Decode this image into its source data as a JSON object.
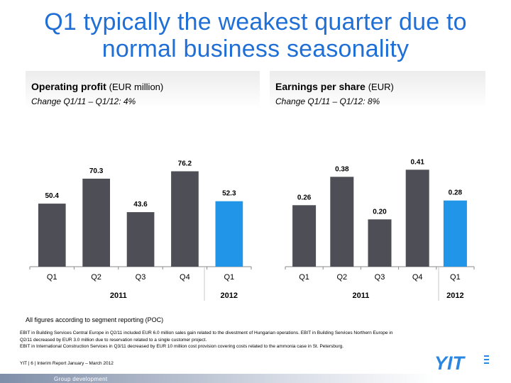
{
  "slide": {
    "title_line1": "Q1 typically the weakest quarter due to",
    "title_line2": "normal business seasonality",
    "panels": [
      {
        "metric": "Operating profit",
        "unit": "(EUR million)",
        "change": "Change Q1/11 – Q1/12: 4%"
      },
      {
        "metric": "Earnings per share",
        "unit": "(EUR)",
        "change": "Change Q1/11 – Q1/12: 8%"
      }
    ],
    "notes": {
      "poc": "All figures according to segment reporting (POC)",
      "detail_line1": "EBIT in Building Services Central Europe in Q2/11 included EUR 6.0 million sales gain related to the divestment of Hungarian operations. EBIT in Building Services Northern Europe in",
      "detail_line2": "Q2/11 decreased by EUR 3.0 million due to reservation related to a single customer project.",
      "detail_line3": "EBIT in International Construction Services in Q3/11 decreased by EUR 10 million cost provision covering costs related to the ammonia case in St. Petersburg."
    },
    "footer": {
      "reference": "YIT   |  6  |  Interim Report January – March 2012",
      "department": "Group development",
      "logo_text": "YIT"
    },
    "colors": {
      "title": "#1f6fd6",
      "bar": "#4e4f56",
      "highlight_bar": "#2196e8"
    }
  },
  "chart_data": [
    {
      "type": "bar",
      "title": "Operating profit",
      "categories": [
        "Q1",
        "Q2",
        "Q3",
        "Q4",
        "Q1"
      ],
      "groups": [
        {
          "label": "2011",
          "categories": [
            "Q1",
            "Q2",
            "Q3",
            "Q4"
          ]
        },
        {
          "label": "2012",
          "categories": [
            "Q1"
          ]
        }
      ],
      "values": [
        50.4,
        70.3,
        43.6,
        76.2,
        52.3
      ],
      "value_labels": [
        "50.4",
        "70.3",
        "43.6",
        "76.2",
        "52.3"
      ],
      "highlight_index": 4,
      "ylim": [
        0,
        85
      ],
      "grid": false
    },
    {
      "type": "bar",
      "title": "Earnings per share",
      "categories": [
        "Q1",
        "Q2",
        "Q3",
        "Q4",
        "Q1"
      ],
      "groups": [
        {
          "label": "2011",
          "categories": [
            "Q1",
            "Q2",
            "Q3",
            "Q4"
          ]
        },
        {
          "label": "2012",
          "categories": [
            "Q1"
          ]
        }
      ],
      "values": [
        0.26,
        0.38,
        0.2,
        0.41,
        0.28
      ],
      "value_labels": [
        "0.26",
        "0.38",
        "0.20",
        "0.41",
        "0.28"
      ],
      "highlight_index": 4,
      "ylim": [
        0,
        0.45
      ],
      "grid": false
    }
  ]
}
